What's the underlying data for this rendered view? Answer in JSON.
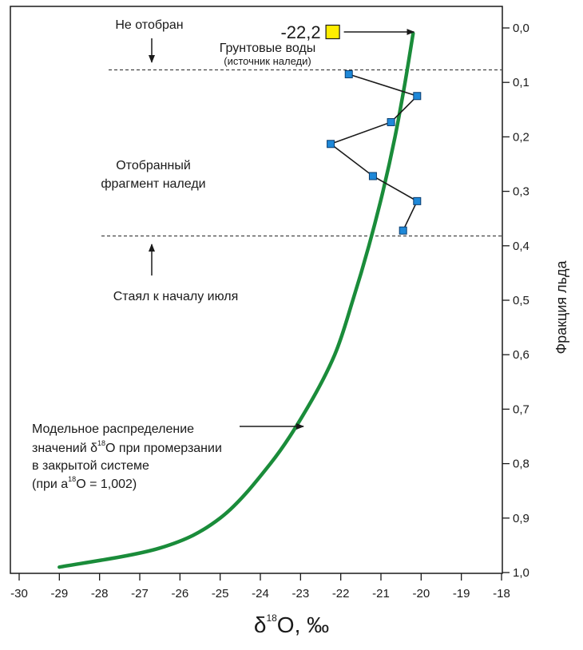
{
  "chart_data": {
    "type": "line",
    "xlabel": {
      "delta": "δ",
      "sup": "18",
      "rest": "O, ‰"
    },
    "ylabel": "Фракция льда",
    "xlim": [
      -30,
      -18
    ],
    "ylim": [
      0,
      1.0
    ],
    "y_inverted": true,
    "y_axis_position": "right",
    "x_ticks": [
      "-30",
      "-29",
      "-28",
      "-27",
      "-26",
      "-25",
      "-24",
      "-23",
      "-22",
      "-21",
      "-20",
      "-19",
      "-18"
    ],
    "y_ticks": [
      "0,0",
      "0,1",
      "0,2",
      "0,3",
      "0,4",
      "0,5",
      "0,6",
      "0,7",
      "0,8",
      "0,9",
      "1,0"
    ],
    "series": [
      {
        "kind": "model-curve",
        "color": "#1a8c3a",
        "points": [
          {
            "x": -20.2,
            "y": 0.01
          },
          {
            "x": -20.4,
            "y": 0.1
          },
          {
            "x": -20.65,
            "y": 0.2
          },
          {
            "x": -20.95,
            "y": 0.3
          },
          {
            "x": -21.3,
            "y": 0.4
          },
          {
            "x": -21.7,
            "y": 0.5
          },
          {
            "x": -22.15,
            "y": 0.6
          },
          {
            "x": -22.85,
            "y": 0.7
          },
          {
            "x": -23.75,
            "y": 0.8
          },
          {
            "x": -25.0,
            "y": 0.9
          },
          {
            "x": -26.5,
            "y": 0.955
          },
          {
            "x": -29.0,
            "y": 0.99
          }
        ]
      },
      {
        "kind": "measured",
        "color": "#1e88d8",
        "points": [
          {
            "x": -21.8,
            "y": 0.085
          },
          {
            "x": -20.1,
            "y": 0.125
          },
          {
            "x": -20.75,
            "y": 0.173
          },
          {
            "x": -22.25,
            "y": 0.213
          },
          {
            "x": -21.2,
            "y": 0.272
          },
          {
            "x": -20.1,
            "y": 0.318
          },
          {
            "x": -20.45,
            "y": 0.372
          }
        ]
      }
    ],
    "groundwater": {
      "x": -22.2,
      "y": 0.0,
      "label": "-22,2",
      "color": "#ffee00"
    },
    "hlines": [
      0.077,
      0.382
    ],
    "annotations": {
      "not_sampled": "Не отобран",
      "groundwater_line1": "Грунтовые воды",
      "groundwater_line2": "(источник наледи)",
      "sampled_line1": "Отобранный",
      "sampled_line2": "фрагмент наледи",
      "melted": "Стаял к началу июля",
      "model_line1": "Модельное распределение",
      "model_line2_a": "значений δ",
      "model_line2_sup": "18",
      "model_line2_b": "O при промерзании",
      "model_line3": "в закрытой системе",
      "model_line4_a": "(при a",
      "model_line4_sup": "18",
      "model_line4_b": "O = 1,002)"
    }
  }
}
